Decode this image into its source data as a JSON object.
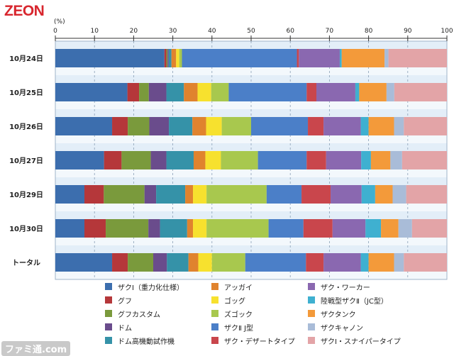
{
  "brand": "ZEON",
  "watermark": "ファミ通.com",
  "chart_data": {
    "type": "bar",
    "orientation": "horizontal",
    "stacked": true,
    "unit_label": "(%)",
    "xlim": [
      0,
      100
    ],
    "ticks": [
      "0",
      "10",
      "20",
      "30",
      "40",
      "50",
      "60",
      "70",
      "80",
      "90",
      "100"
    ],
    "grid": true,
    "legend_position": "bottom",
    "categories": [
      "10月24日",
      "10月25日",
      "10月26日",
      "10月27日",
      "10月29日",
      "10月30日",
      "トータル"
    ],
    "series": [
      {
        "name": "ザクⅠ（重力化仕様）",
        "color": "#3c6eae",
        "values": [
          28,
          18.5,
          14.5,
          12.5,
          7.5,
          7.5,
          14.5
        ]
      },
      {
        "name": "グフ",
        "color": "#b5373a",
        "values": [
          0.5,
          3,
          4,
          4.5,
          5,
          5.5,
          4
        ]
      },
      {
        "name": "グフカスタム",
        "color": "#7a9a3c",
        "values": [
          0.3,
          2.5,
          5.5,
          7.5,
          10.5,
          11,
          6.5
        ]
      },
      {
        "name": "ドム",
        "color": "#6a4c8c",
        "values": [
          0.3,
          4.5,
          5,
          4,
          3,
          3,
          3.5
        ]
      },
      {
        "name": "ドム高機動試作機",
        "color": "#3592a8",
        "values": [
          0.7,
          4.5,
          6,
          7,
          7.5,
          7,
          5.5
        ]
      },
      {
        "name": "アッガイ",
        "color": "#e0832e",
        "values": [
          1.2,
          3.5,
          3.5,
          3,
          2,
          1.5,
          2.5
        ]
      },
      {
        "name": "ゴッグ",
        "color": "#f7e12e",
        "values": [
          0.8,
          3.5,
          4,
          4,
          3.5,
          3.5,
          3.5
        ]
      },
      {
        "name": "ズゴック",
        "color": "#a8c84e",
        "values": [
          0.7,
          4.5,
          7.5,
          9.5,
          15.5,
          16,
          8.5
        ]
      },
      {
        "name": "ザクⅡ J型",
        "color": "#4b7fc8",
        "values": [
          29.5,
          20,
          14.5,
          12.5,
          9,
          9,
          15.5
        ]
      },
      {
        "name": "ザク・デザートタイプ",
        "color": "#c9464c",
        "values": [
          0.5,
          2.5,
          4,
          5,
          7.5,
          7.5,
          4.5
        ]
      },
      {
        "name": "ザク・ワーカー",
        "color": "#8a68b0",
        "values": [
          10.5,
          10,
          9.5,
          9,
          8,
          8.5,
          9.5
        ]
      },
      {
        "name": "陸戦型ザクⅡ（JC型）",
        "color": "#3fb0d0",
        "values": [
          0.5,
          1,
          2,
          2.5,
          3.5,
          4,
          2
        ]
      },
      {
        "name": "ザクタンク",
        "color": "#f39a3a",
        "values": [
          11,
          7,
          6.5,
          5,
          4.5,
          4.5,
          6.5
        ]
      },
      {
        "name": "ザクキャノン",
        "color": "#a9bcd8",
        "values": [
          1,
          2,
          2.5,
          3,
          3.5,
          3.5,
          2.5
        ]
      },
      {
        "name": "ザクⅠ・スナイパータイプ",
        "color": "#e3a4a7",
        "values": [
          15,
          13.5,
          11,
          11.5,
          10.5,
          9,
          11
        ]
      }
    ]
  }
}
